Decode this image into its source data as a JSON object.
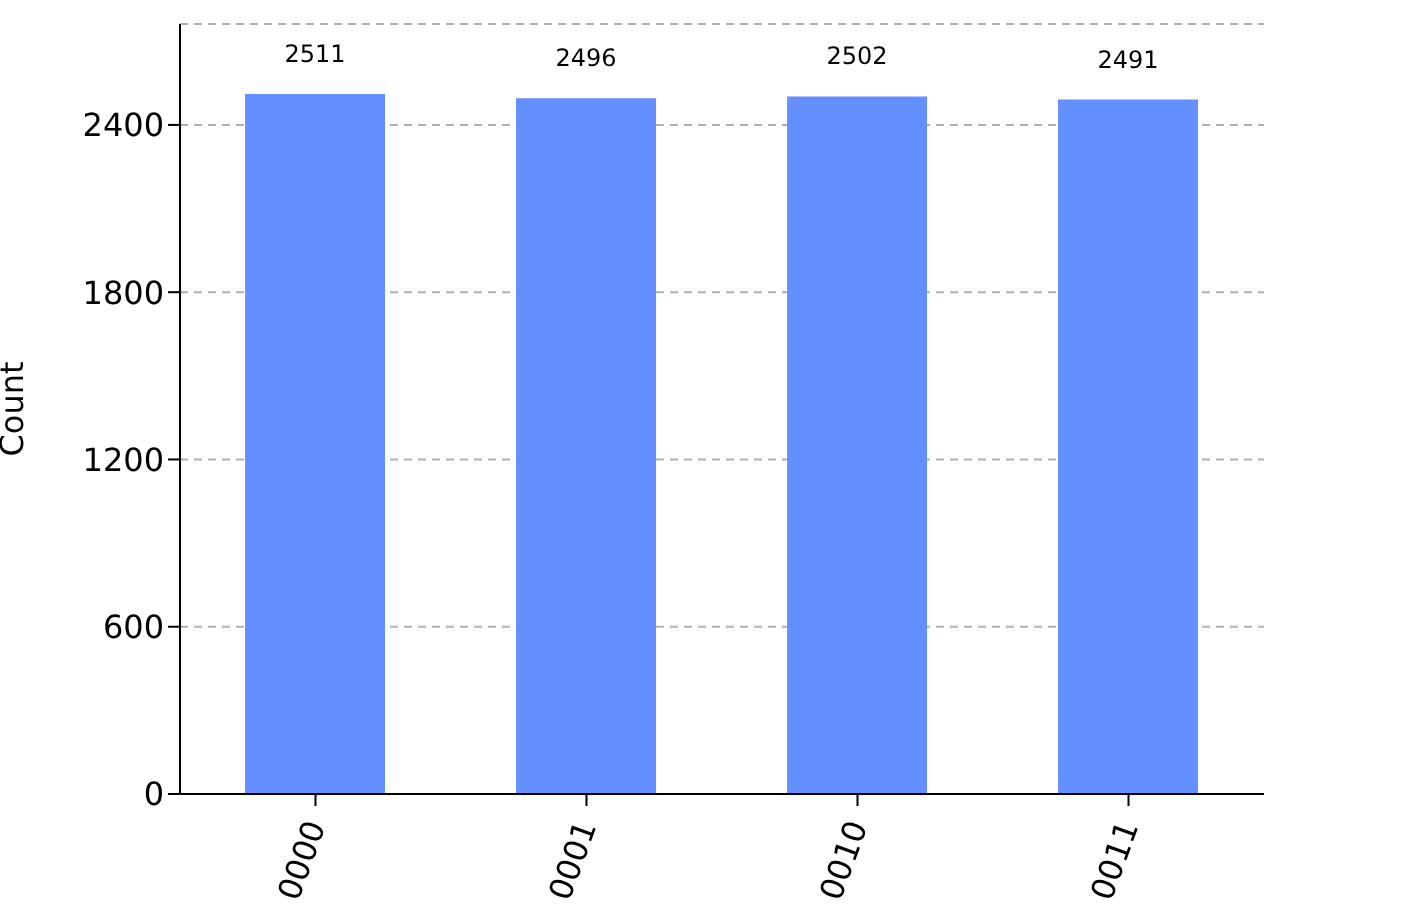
{
  "chart_data": {
    "type": "bar",
    "ylabel": "Count",
    "categories": [
      "0000",
      "0001",
      "0010",
      "0011"
    ],
    "values": [
      2511,
      2496,
      2502,
      2491
    ],
    "color": "#648fff",
    "ylim": [
      0,
      2762
    ],
    "yticks": [
      0,
      600,
      1200,
      1800,
      2400
    ],
    "grid": "y",
    "data_labels": true
  }
}
